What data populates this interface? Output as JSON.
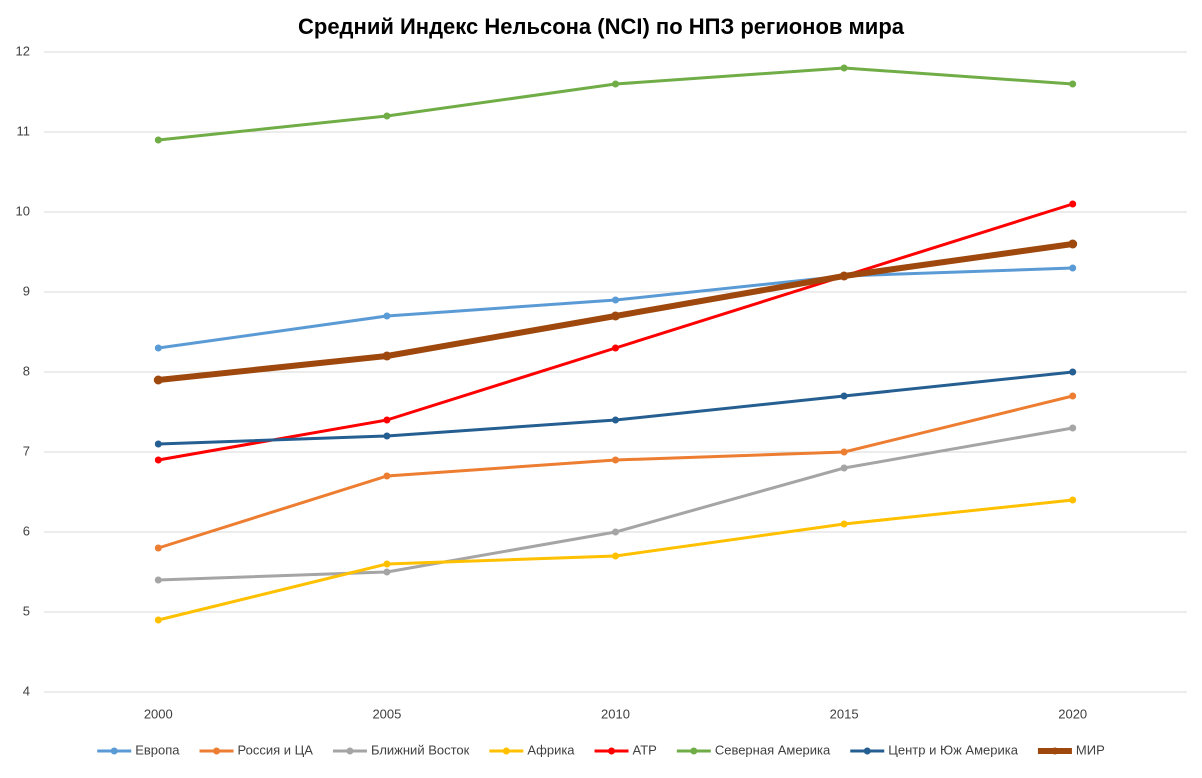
{
  "chart_data": {
    "type": "line",
    "title": "Средний Индекс Нельсона (NCI) по НПЗ регионов мира",
    "categories": [
      "2000",
      "2005",
      "2010",
      "2015",
      "2020"
    ],
    "ylim": [
      4,
      12
    ],
    "yticks": [
      4,
      5,
      6,
      7,
      8,
      9,
      10,
      11,
      12
    ],
    "grid": true,
    "legend": "bottom",
    "series": [
      {
        "name": "Европа",
        "color": "#5b9bd5",
        "values": [
          8.3,
          8.7,
          8.9,
          9.2,
          9.3
        ]
      },
      {
        "name": "Россия и ЦА",
        "color": "#ed7d31",
        "values": [
          5.8,
          6.7,
          6.9,
          7.0,
          7.7
        ]
      },
      {
        "name": "Ближний Восток",
        "color": "#a5a5a5",
        "values": [
          5.4,
          5.5,
          6.0,
          6.8,
          7.3
        ]
      },
      {
        "name": "Африка",
        "color": "#ffc000",
        "values": [
          4.9,
          5.6,
          5.7,
          6.1,
          6.4
        ]
      },
      {
        "name": "АТР",
        "color": "#ff0000",
        "values": [
          6.9,
          7.4,
          8.3,
          9.2,
          10.1
        ]
      },
      {
        "name": "Северная Америка",
        "color": "#70ad47",
        "values": [
          10.9,
          11.2,
          11.6,
          11.8,
          11.6
        ]
      },
      {
        "name": "Центр и Юж Америка",
        "color": "#255e91",
        "values": [
          7.1,
          7.2,
          7.4,
          7.7,
          8.0
        ]
      },
      {
        "name": "МИР",
        "color": "#9e480e",
        "line_width": 6,
        "values": [
          7.9,
          8.2,
          8.7,
          9.2,
          9.6
        ]
      }
    ]
  }
}
